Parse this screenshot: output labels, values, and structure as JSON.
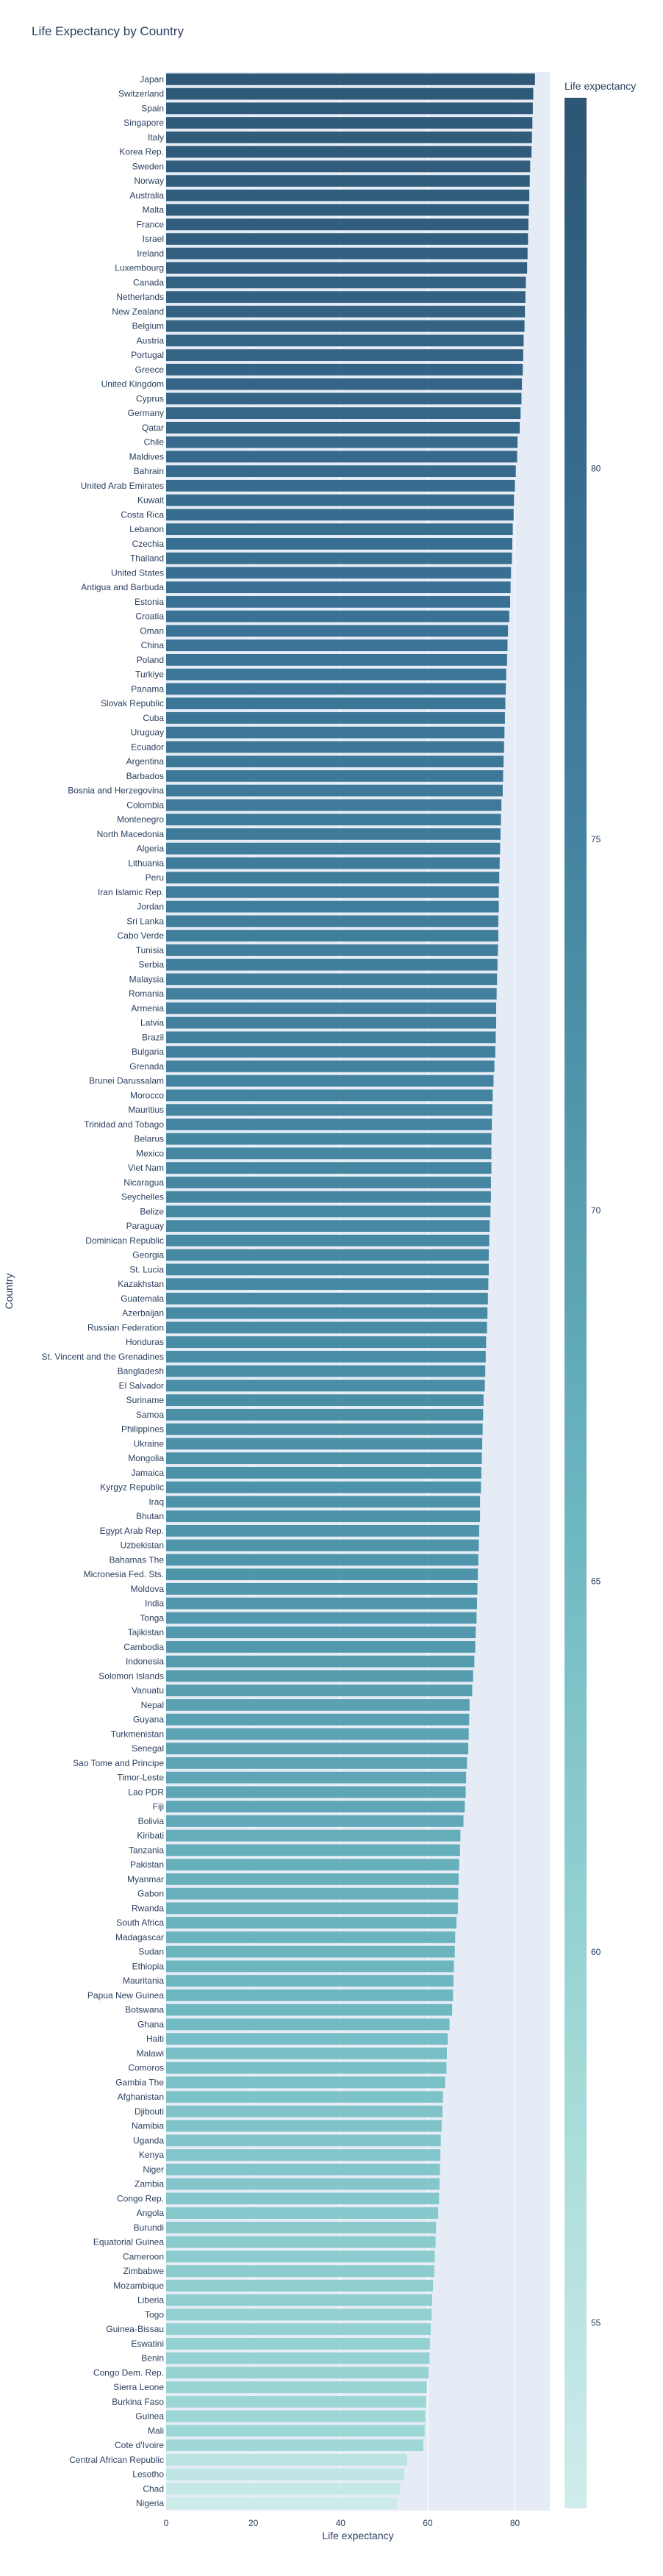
{
  "chart_data": {
    "type": "bar",
    "orientation": "horizontal",
    "title": "Life Expectancy by Country",
    "xlabel": "Life expectancy",
    "ylabel": "Country",
    "xlim": [
      0,
      88
    ],
    "xticks": [
      0,
      20,
      40,
      60,
      80
    ],
    "grid": true,
    "colorbar": {
      "title": "Life expectancy",
      "range": [
        52.5,
        85.0
      ],
      "ticks": [
        55,
        60,
        65,
        70,
        75,
        80
      ],
      "colors": [
        "#cfecea",
        "#9fd8d6",
        "#6fb9c2",
        "#4d93a9",
        "#3a7295",
        "#2e5675"
      ]
    },
    "categories": [
      "Japan",
      "Switzerland",
      "Spain",
      "Singapore",
      "Italy",
      "Korea Rep.",
      "Sweden",
      "Norway",
      "Australia",
      "Malta",
      "France",
      "Israel",
      "Ireland",
      "Luxembourg",
      "Canada",
      "Netherlands",
      "New Zealand",
      "Belgium",
      "Austria",
      "Portugal",
      "Greece",
      "United Kingdom",
      "Cyprus",
      "Germany",
      "Qatar",
      "Chile",
      "Maldives",
      "Bahrain",
      "United Arab Emirates",
      "Kuwait",
      "Costa Rica",
      "Lebanon",
      "Czechia",
      "Thailand",
      "United States",
      "Antigua and Barbuda",
      "Estonia",
      "Croatia",
      "Oman",
      "China",
      "Poland",
      "Turkiye",
      "Panama",
      "Slovak Republic",
      "Cuba",
      "Uruguay",
      "Ecuador",
      "Argentina",
      "Barbados",
      "Bosnia and Herzegovina",
      "Colombia",
      "Montenegro",
      "North Macedonia",
      "Algeria",
      "Lithuania",
      "Peru",
      "Iran Islamic Rep.",
      "Jordan",
      "Sri Lanka",
      "Cabo Verde",
      "Tunisia",
      "Serbia",
      "Malaysia",
      "Romania",
      "Armenia",
      "Latvia",
      "Brazil",
      "Bulgaria",
      "Grenada",
      "Brunei Darussalam",
      "Morocco",
      "Mauritius",
      "Trinidad and Tobago",
      "Belarus",
      "Mexico",
      "Viet Nam",
      "Nicaragua",
      "Seychelles",
      "Belize",
      "Paraguay",
      "Dominican Republic",
      "Georgia",
      "St. Lucia",
      "Kazakhstan",
      "Guatemala",
      "Azerbaijan",
      "Russian Federation",
      "Honduras",
      "St. Vincent and the Grenadines",
      "Bangladesh",
      "El Salvador",
      "Suriname",
      "Samoa",
      "Philippines",
      "Ukraine",
      "Mongolia",
      "Jamaica",
      "Kyrgyz Republic",
      "Iraq",
      "Bhutan",
      "Egypt Arab Rep.",
      "Uzbekistan",
      "Bahamas The",
      "Micronesia Fed. Sts.",
      "Moldova",
      "India",
      "Tonga",
      "Tajikistan",
      "Cambodia",
      "Indonesia",
      "Solomon Islands",
      "Vanuatu",
      "Nepal",
      "Guyana",
      "Turkmenistan",
      "Senegal",
      "Sao Tome and Principe",
      "Timor-Leste",
      "Lao PDR",
      "Fiji",
      "Bolivia",
      "Kiribati",
      "Tanzania",
      "Pakistan",
      "Myanmar",
      "Gabon",
      "Rwanda",
      "South Africa",
      "Madagascar",
      "Sudan",
      "Ethiopia",
      "Mauritania",
      "Papua New Guinea",
      "Botswana",
      "Ghana",
      "Haiti",
      "Malawi",
      "Comoros",
      "Gambia The",
      "Afghanistan",
      "Djibouti",
      "Namibia",
      "Uganda",
      "Kenya",
      "Niger",
      "Zambia",
      "Congo Rep.",
      "Angola",
      "Burundi",
      "Equatorial Guinea",
      "Cameroon",
      "Zimbabwe",
      "Mozambique",
      "Liberia",
      "Togo",
      "Guinea-Bissau",
      "Eswatini",
      "Benin",
      "Congo Dem. Rep.",
      "Sierra Leone",
      "Burkina Faso",
      "Guinea",
      "Mali",
      "Cote d'Ivoire",
      "Central African Republic",
      "Lesotho",
      "Chad",
      "Nigeria"
    ],
    "values": [
      84.6,
      84.2,
      84.1,
      84.0,
      83.9,
      83.8,
      83.5,
      83.4,
      83.3,
      83.2,
      83.1,
      83.0,
      82.9,
      82.8,
      82.5,
      82.4,
      82.3,
      82.2,
      82.0,
      81.9,
      81.8,
      81.6,
      81.5,
      81.3,
      81.1,
      80.6,
      80.5,
      80.2,
      80.0,
      79.8,
      79.7,
      79.5,
      79.4,
      79.3,
      79.1,
      79.0,
      78.9,
      78.7,
      78.4,
      78.3,
      78.2,
      78.0,
      77.9,
      77.8,
      77.7,
      77.6,
      77.5,
      77.4,
      77.3,
      77.2,
      76.9,
      76.8,
      76.7,
      76.6,
      76.5,
      76.4,
      76.3,
      76.3,
      76.2,
      76.2,
      76.1,
      76.0,
      75.9,
      75.8,
      75.7,
      75.7,
      75.6,
      75.5,
      75.3,
      75.1,
      74.9,
      74.8,
      74.7,
      74.6,
      74.6,
      74.6,
      74.5,
      74.5,
      74.4,
      74.2,
      74.1,
      74.0,
      74.0,
      73.9,
      73.8,
      73.7,
      73.6,
      73.4,
      73.3,
      73.2,
      73.1,
      72.8,
      72.7,
      72.6,
      72.5,
      72.4,
      72.3,
      72.2,
      72.0,
      72.0,
      71.8,
      71.7,
      71.6,
      71.5,
      71.4,
      71.3,
      71.2,
      71.0,
      70.9,
      70.7,
      70.4,
      70.2,
      69.6,
      69.5,
      69.4,
      69.3,
      69.0,
      68.8,
      68.7,
      68.5,
      68.2,
      67.5,
      67.4,
      67.2,
      67.1,
      67.0,
      66.9,
      66.6,
      66.3,
      66.2,
      66.0,
      65.9,
      65.8,
      65.6,
      65.0,
      64.6,
      64.4,
      64.3,
      64.0,
      63.5,
      63.4,
      63.2,
      63.0,
      62.9,
      62.8,
      62.7,
      62.6,
      62.4,
      61.9,
      61.8,
      61.6,
      61.5,
      61.2,
      61.0,
      60.9,
      60.7,
      60.5,
      60.4,
      60.2,
      59.8,
      59.6,
      59.4,
      59.3,
      59.0,
      55.3,
      54.6,
      53.7,
      52.9
    ]
  }
}
